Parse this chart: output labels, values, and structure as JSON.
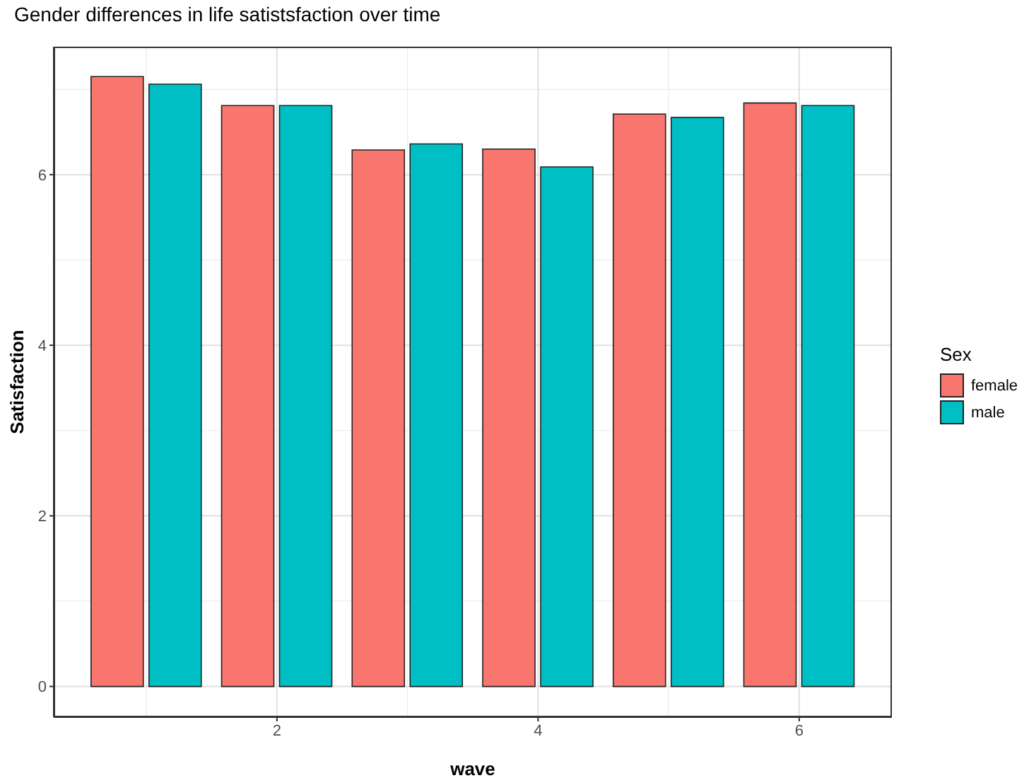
{
  "chart_data": {
    "type": "bar",
    "title": "Gender differences in life satistsfaction over time",
    "xlabel": "wave",
    "ylabel": "Satisfaction",
    "legend_title": "Sex",
    "x": [
      1,
      2,
      3,
      4,
      5,
      6
    ],
    "series": [
      {
        "name": "female",
        "color": "#f8766d",
        "values": [
          7.15,
          6.81,
          6.29,
          6.3,
          6.71,
          6.84
        ]
      },
      {
        "name": "male",
        "color": "#00bfc4",
        "values": [
          7.06,
          6.81,
          6.36,
          6.09,
          6.67,
          6.81
        ]
      }
    ],
    "xlim": [
      0.29,
      6.71
    ],
    "xticks": [
      2,
      4,
      6
    ],
    "ylim": [
      -0.36,
      7.5
    ],
    "yticks": [
      0,
      2,
      4,
      6
    ],
    "grid": true,
    "legend": "right"
  }
}
